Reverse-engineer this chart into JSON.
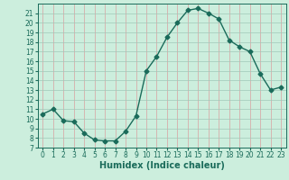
{
  "x": [
    0,
    1,
    2,
    3,
    4,
    5,
    6,
    7,
    8,
    9,
    10,
    11,
    12,
    13,
    14,
    15,
    16,
    17,
    18,
    19,
    20,
    21,
    22,
    23
  ],
  "y": [
    10.5,
    11.0,
    9.8,
    9.7,
    8.5,
    7.8,
    7.7,
    7.7,
    8.7,
    10.3,
    15.0,
    16.5,
    18.5,
    20.0,
    21.3,
    21.5,
    21.0,
    20.4,
    18.2,
    17.5,
    17.0,
    14.7,
    13.0,
    13.3
  ],
  "line_color": "#1a6b5a",
  "marker": "D",
  "marker_size": 2.5,
  "xlabel": "Humidex (Indice chaleur)",
  "xlim": [
    -0.5,
    23.5
  ],
  "ylim": [
    7,
    22
  ],
  "yticks": [
    7,
    8,
    9,
    10,
    11,
    12,
    13,
    14,
    15,
    16,
    17,
    18,
    19,
    20,
    21
  ],
  "xticks": [
    0,
    1,
    2,
    3,
    4,
    5,
    6,
    7,
    8,
    9,
    10,
    11,
    12,
    13,
    14,
    15,
    16,
    17,
    18,
    19,
    20,
    21,
    22,
    23
  ],
  "background_color": "#cceedd",
  "grid_color_v": "#d9a0a0",
  "grid_color_h": "#a0c8b8",
  "tick_fontsize": 5.5,
  "xlabel_fontsize": 7,
  "linewidth": 1.0
}
